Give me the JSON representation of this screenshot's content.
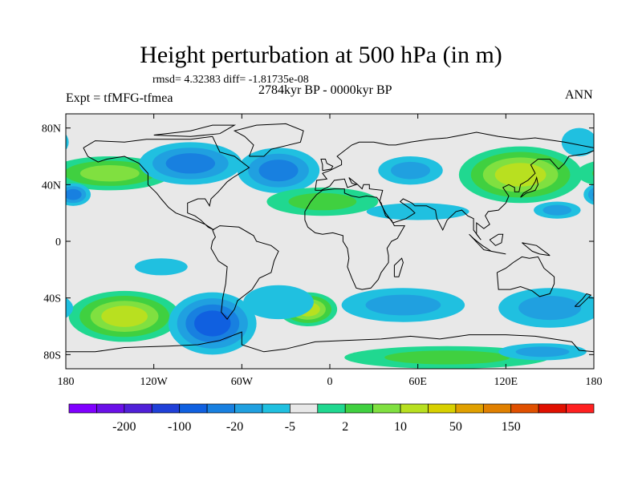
{
  "title": "Height perturbation at 500 hPa (in m)",
  "stats_line": "rmsd= 4.32383 diff= -1.81735e-08",
  "period": "2784kyr BP - 0000kyr BP",
  "experiment": "Expt = tfMFG-tfmea",
  "season": "ANN",
  "chart_data": {
    "type": "heatmap",
    "projection": "cylindrical-equidistant",
    "variable": "500 hPa geopotential height perturbation",
    "units": "m",
    "x_range": [
      -180,
      180
    ],
    "y_range": [
      -90,
      90
    ],
    "x_ticks": [
      {
        "value": -180,
        "label": "180"
      },
      {
        "value": -120,
        "label": "120W"
      },
      {
        "value": -60,
        "label": "60W"
      },
      {
        "value": 0,
        "label": "0"
      },
      {
        "value": 60,
        "label": "60E"
      },
      {
        "value": 120,
        "label": "120E"
      },
      {
        "value": 180,
        "label": "180"
      }
    ],
    "y_ticks": [
      {
        "value": 80,
        "label": "80N"
      },
      {
        "value": 40,
        "label": "40N"
      },
      {
        "value": 0,
        "label": "0"
      },
      {
        "value": -40,
        "label": "40S"
      },
      {
        "value": -80,
        "label": "80S"
      }
    ],
    "colorbar": {
      "colors": [
        "#8000ff",
        "#6a10e8",
        "#5020d8",
        "#2040d8",
        "#1060e0",
        "#1880e0",
        "#20a0e0",
        "#20c0e0",
        "#e8e8e8",
        "#20d890",
        "#40d040",
        "#80e040",
        "#b8e020",
        "#d8d000",
        "#e0a000",
        "#e08000",
        "#e05000",
        "#e01000",
        "#ff2020"
      ],
      "labels": [
        {
          "after_index": 1,
          "label": "-200"
        },
        {
          "after_index": 3,
          "label": "-100"
        },
        {
          "after_index": 5,
          "label": "-20"
        },
        {
          "after_index": 7,
          "label": "-5"
        },
        {
          "after_index": 9,
          "label": "2"
        },
        {
          "after_index": 11,
          "label": "10"
        },
        {
          "after_index": 13,
          "label": "50"
        },
        {
          "after_index": 15,
          "label": "150"
        }
      ]
    },
    "anomalies": [
      {
        "lon": -150,
        "lat": 48,
        "rx": 42,
        "ry": 12,
        "level": 11
      },
      {
        "lon": -95,
        "lat": 55,
        "rx": 35,
        "ry": 15,
        "level": 5
      },
      {
        "lon": -175,
        "lat": 33,
        "rx": 12,
        "ry": 8,
        "level": 5
      },
      {
        "lon": -35,
        "lat": 50,
        "rx": 28,
        "ry": 16,
        "level": 5
      },
      {
        "lon": -5,
        "lat": 28,
        "rx": 38,
        "ry": 10,
        "level": 10
      },
      {
        "lon": 55,
        "lat": 50,
        "rx": 22,
        "ry": 10,
        "level": 6
      },
      {
        "lon": 60,
        "lat": 21,
        "rx": 35,
        "ry": 6,
        "level": 7
      },
      {
        "lon": 130,
        "lat": 47,
        "rx": 42,
        "ry": 20,
        "level": 12
      },
      {
        "lon": 155,
        "lat": 22,
        "rx": 16,
        "ry": 6,
        "level": 6
      },
      {
        "lon": -140,
        "lat": -53,
        "rx": 38,
        "ry": 18,
        "level": 12
      },
      {
        "lon": -80,
        "lat": -58,
        "rx": 30,
        "ry": 22,
        "level": 4
      },
      {
        "lon": -15,
        "lat": -48,
        "rx": 20,
        "ry": 12,
        "level": 12
      },
      {
        "lon": -35,
        "lat": -43,
        "rx": 24,
        "ry": 12,
        "level": 7
      },
      {
        "lon": 50,
        "lat": -45,
        "rx": 42,
        "ry": 12,
        "level": 6
      },
      {
        "lon": 150,
        "lat": -47,
        "rx": 35,
        "ry": 14,
        "level": 6
      },
      {
        "lon": 80,
        "lat": -82,
        "rx": 70,
        "ry": 8,
        "level": 10
      },
      {
        "lon": 145,
        "lat": -78,
        "rx": 30,
        "ry": 6,
        "level": 6
      },
      {
        "lon": -115,
        "lat": -18,
        "rx": 18,
        "ry": 6,
        "level": 7
      },
      {
        "lon": 170,
        "lat": 70,
        "rx": 12,
        "ry": 10,
        "level": 7
      }
    ]
  }
}
